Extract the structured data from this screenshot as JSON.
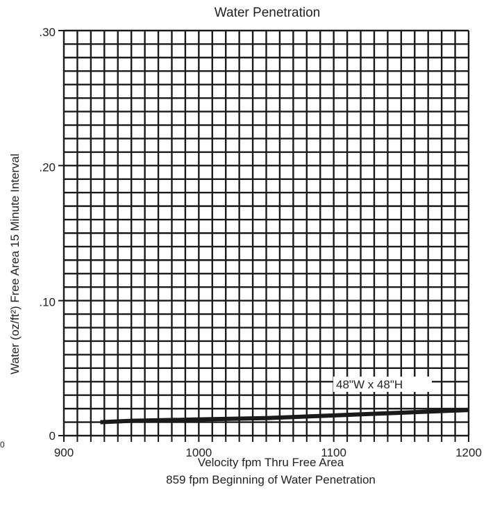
{
  "chart_data": {
    "type": "line",
    "title": "Water Penetration",
    "ylabel": "Water (oz/ft²) Free Area 15 Minute Interval",
    "xlabel": "Velocity fpm Thru Free Area",
    "xlabel2": "859 fpm Beginning of Water Penetration",
    "xlim": [
      900,
      1200
    ],
    "ylim": [
      0,
      0.3
    ],
    "x_ticks": [
      900,
      1000,
      1100,
      1200
    ],
    "x_tick_labels": [
      "900",
      "1000",
      "1100",
      "1200"
    ],
    "y_ticks": [
      0,
      0.1,
      0.2,
      0.3
    ],
    "y_tick_labels": [
      "0",
      ".10",
      ".20",
      ".30"
    ],
    "edge_label": "0",
    "grid": true,
    "series": [
      {
        "name": "48\"W x 48\"H",
        "color": "#1a1a1a",
        "x": [
          927,
          950,
          1000,
          1050,
          1100,
          1150,
          1200
        ],
        "y": [
          0.01,
          0.011,
          0.012,
          0.013,
          0.015,
          0.017,
          0.019
        ]
      }
    ]
  }
}
